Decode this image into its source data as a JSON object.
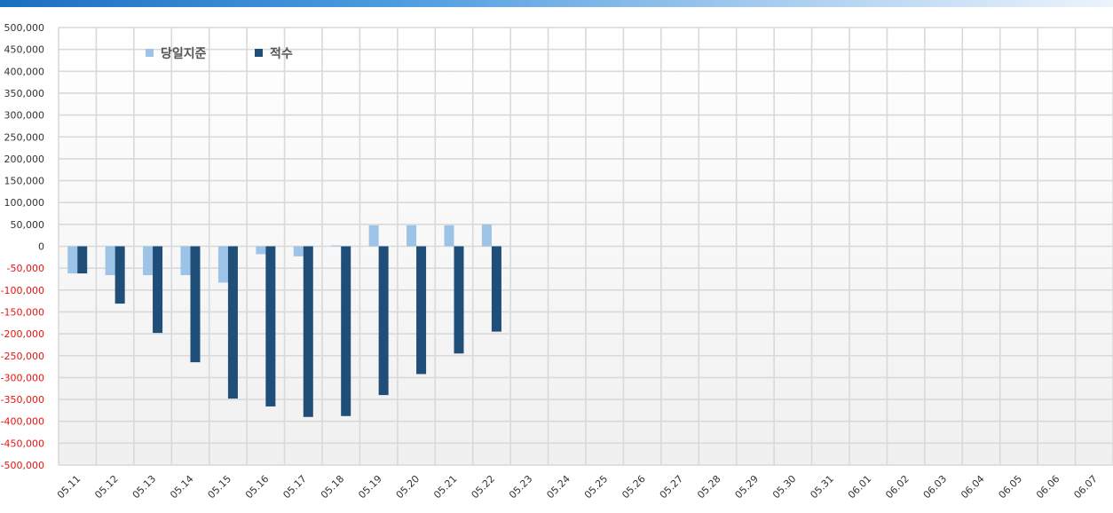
{
  "colors": {
    "current": "#9dc3e6",
    "cumulative": "#1f4e79",
    "negative_tick": "#e8130f",
    "grid": "#d9d9d9"
  },
  "chart_data": {
    "type": "bar",
    "categories": [
      "05.11",
      "05.12",
      "05.13",
      "05.14",
      "05.15",
      "05.16",
      "05.17",
      "05.18",
      "05.19",
      "05.20",
      "05.21",
      "05.22",
      "05.23",
      "05.24",
      "05.25",
      "05.26",
      "05.27",
      "05.28",
      "05.29",
      "05.30",
      "05.31",
      "06.01",
      "06.02",
      "06.03",
      "06.04",
      "06.05",
      "06.06",
      "06.07"
    ],
    "series": [
      {
        "name": "당일지준",
        "values": [
          -62000,
          -66000,
          -66000,
          -66000,
          -83000,
          -18000,
          -23000,
          2000,
          48000,
          48000,
          48000,
          50000,
          null,
          null,
          null,
          null,
          null,
          null,
          null,
          null,
          null,
          null,
          null,
          null,
          null,
          null,
          null,
          null
        ]
      },
      {
        "name": "적수",
        "values": [
          -62000,
          -131000,
          -198000,
          -265000,
          -348000,
          -366000,
          -390000,
          -388000,
          -340000,
          -292000,
          -245000,
          -195000,
          null,
          null,
          null,
          null,
          null,
          null,
          null,
          null,
          null,
          null,
          null,
          null,
          null,
          null,
          null,
          null
        ]
      }
    ],
    "ylim": [
      -500000,
      500000
    ],
    "ytick_step": 50000,
    "yticks": [
      "500,000",
      "450,000",
      "400,000",
      "350,000",
      "300,000",
      "250,000",
      "200,000",
      "150,000",
      "100,000",
      "50,000",
      "0",
      "-50,000",
      "-100,000",
      "-150,000",
      "-200,000",
      "-250,000",
      "-300,000",
      "-350,000",
      "-400,000",
      "-450,000",
      "-500,000"
    ],
    "legend": {
      "position": "top-left"
    },
    "grid": true,
    "title": "",
    "xlabel": "",
    "ylabel": ""
  }
}
